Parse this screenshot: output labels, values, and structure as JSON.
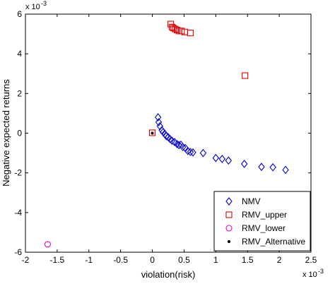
{
  "chart_data": {
    "type": "scatter",
    "title": "",
    "xlabel": "violation(risk)",
    "ylabel": "Negative expected returns",
    "x_exponent": "x 10",
    "x_exponent_power": "-3",
    "y_exponent": "x 10",
    "y_exponent_power": "-3",
    "xlim": [
      -2,
      2.5
    ],
    "ylim": [
      -6,
      6
    ],
    "x_ticks": [
      -2,
      -1.5,
      -1,
      -0.5,
      0,
      0.5,
      1,
      1.5,
      2,
      2.5
    ],
    "x_tick_labels": [
      "-2",
      "-1.5",
      "-1",
      "-0.5",
      "0",
      "0.5",
      "1",
      "1.5",
      "2",
      "2.5"
    ],
    "y_ticks": [
      -6,
      -4,
      -2,
      0,
      2,
      4,
      6
    ],
    "y_tick_labels": [
      "-6",
      "-4",
      "-2",
      "0",
      "2",
      "4",
      "6"
    ],
    "grid": false,
    "legend_position": "bottom-right",
    "series": [
      {
        "name": "NMV",
        "marker": "diamond",
        "color": "#0000cc",
        "points": [
          [
            0.09,
            0.8
          ],
          [
            0.1,
            0.55
          ],
          [
            0.12,
            0.35
          ],
          [
            0.15,
            0.15
          ],
          [
            0.17,
            0.05
          ],
          [
            0.2,
            -0.05
          ],
          [
            0.22,
            -0.15
          ],
          [
            0.25,
            -0.2
          ],
          [
            0.28,
            -0.3
          ],
          [
            0.31,
            -0.38
          ],
          [
            0.35,
            -0.45
          ],
          [
            0.39,
            -0.55
          ],
          [
            0.42,
            -0.6
          ],
          [
            0.45,
            -0.58
          ],
          [
            0.48,
            -0.7
          ],
          [
            0.52,
            -0.75
          ],
          [
            0.56,
            -0.9
          ],
          [
            0.6,
            -0.95
          ],
          [
            0.64,
            -0.97
          ],
          [
            0.8,
            -1.0
          ],
          [
            1.0,
            -1.25
          ],
          [
            1.1,
            -1.3
          ],
          [
            1.2,
            -1.38
          ],
          [
            1.45,
            -1.55
          ],
          [
            1.72,
            -1.7
          ],
          [
            1.9,
            -1.72
          ],
          [
            2.1,
            -1.85
          ]
        ]
      },
      {
        "name": "RMV_upper",
        "marker": "square",
        "color": "#e00000",
        "points": [
          [
            0.29,
            5.5
          ],
          [
            0.31,
            5.35
          ],
          [
            0.33,
            5.3
          ],
          [
            0.36,
            5.25
          ],
          [
            0.39,
            5.2
          ],
          [
            0.42,
            5.15
          ],
          [
            0.46,
            5.15
          ],
          [
            0.51,
            5.1
          ],
          [
            0.6,
            5.05
          ],
          [
            1.46,
            2.9
          ],
          [
            0.0,
            0.02
          ]
        ]
      },
      {
        "name": "RMV_lower",
        "marker": "circle",
        "color": "#e000e0",
        "points": [
          [
            -1.65,
            -5.6
          ]
        ]
      },
      {
        "name": "RMV_Alternative",
        "marker": "dot",
        "color": "#000000",
        "points": [
          [
            0.0,
            0.0
          ]
        ]
      }
    ]
  }
}
